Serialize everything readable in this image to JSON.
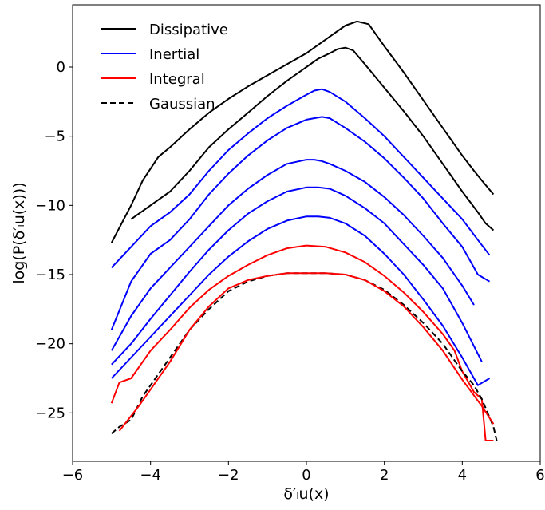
{
  "chart_data": {
    "type": "line",
    "xlabel": "δ′ₗu(x)",
    "ylabel": "log(P(δ′ₗu(x)))",
    "xlim": [
      -6,
      6
    ],
    "ylim": [
      -28.5,
      4.5
    ],
    "xticks": [
      -6,
      -4,
      -2,
      0,
      2,
      4,
      6
    ],
    "xtick_labels": [
      "−6",
      "−4",
      "−2",
      "0",
      "2",
      "4",
      "6"
    ],
    "yticks": [
      0,
      -5,
      -10,
      -15,
      -20,
      -25
    ],
    "ytick_labels": [
      "0",
      "−5",
      "−10",
      "−15",
      "−20",
      "−25"
    ],
    "grid": false,
    "legend_position": "top-left",
    "legend": [
      {
        "label": "Dissipative",
        "color": "#000000",
        "dash": "solid"
      },
      {
        "label": "Inertial",
        "color": "#0000ff",
        "dash": "solid"
      },
      {
        "label": "Integral",
        "color": "#ff0000",
        "dash": "solid"
      },
      {
        "label": "Gaussian",
        "color": "#000000",
        "dash": "dashed"
      }
    ],
    "series": [
      {
        "group": "Dissipative",
        "color": "#000000",
        "dash": "solid",
        "x": [
          -5.0,
          -4.5,
          -4.2,
          -3.8,
          -3.5,
          -3.0,
          -2.5,
          -2.0,
          -1.5,
          -1.0,
          -0.5,
          0.0,
          0.5,
          1.0,
          1.3,
          1.6,
          2.0,
          2.5,
          3.0,
          3.5,
          4.0,
          4.3,
          4.5,
          4.8
        ],
        "y": [
          -12.7,
          -10.0,
          -8.2,
          -6.5,
          -5.8,
          -4.5,
          -3.3,
          -2.3,
          -1.4,
          -0.6,
          0.2,
          1.0,
          2.0,
          3.0,
          3.3,
          3.1,
          1.5,
          -0.4,
          -2.4,
          -4.4,
          -6.4,
          -7.5,
          -8.2,
          -9.2
        ]
      },
      {
        "group": "Dissipative",
        "color": "#000000",
        "dash": "solid",
        "x": [
          -4.5,
          -4.0,
          -3.5,
          -3.0,
          -2.5,
          -2.0,
          -1.5,
          -1.0,
          -0.5,
          0.0,
          0.3,
          0.6,
          0.8,
          1.0,
          1.2,
          1.5,
          2.0,
          2.5,
          3.0,
          3.5,
          4.0,
          4.4,
          4.6,
          4.8
        ],
        "y": [
          -11.0,
          -10.0,
          -9.0,
          -7.5,
          -5.8,
          -4.5,
          -3.3,
          -2.1,
          -1.0,
          0.0,
          0.6,
          1.0,
          1.3,
          1.4,
          1.2,
          0.2,
          -1.5,
          -3.2,
          -5.0,
          -7.0,
          -9.0,
          -10.5,
          -11.3,
          -11.8
        ]
      },
      {
        "group": "Inertial",
        "color": "#0000ff",
        "dash": "solid",
        "x": [
          -5.0,
          -4.5,
          -4.0,
          -3.5,
          -3.0,
          -2.5,
          -2.0,
          -1.5,
          -1.0,
          -0.5,
          0.0,
          0.2,
          0.4,
          0.6,
          1.0,
          1.5,
          2.0,
          2.5,
          3.0,
          3.5,
          4.0,
          4.4,
          4.7
        ],
        "y": [
          -14.5,
          -13.0,
          -11.5,
          -10.5,
          -9.2,
          -7.5,
          -6.0,
          -4.8,
          -3.7,
          -2.8,
          -2.0,
          -1.7,
          -1.6,
          -1.8,
          -2.5,
          -3.7,
          -5.0,
          -6.5,
          -8.0,
          -9.5,
          -11.0,
          -12.5,
          -13.6
        ]
      },
      {
        "group": "Inertial",
        "color": "#0000ff",
        "dash": "solid",
        "x": [
          -5.0,
          -4.5,
          -4.0,
          -3.5,
          -3.0,
          -2.5,
          -2.0,
          -1.5,
          -1.0,
          -0.5,
          0.0,
          0.2,
          0.4,
          0.6,
          1.0,
          1.5,
          2.0,
          2.5,
          3.0,
          3.5,
          4.0,
          4.4,
          4.7
        ],
        "y": [
          -19.0,
          -15.5,
          -13.5,
          -12.5,
          -11.0,
          -9.2,
          -7.7,
          -6.4,
          -5.3,
          -4.4,
          -3.8,
          -3.7,
          -3.6,
          -3.7,
          -4.4,
          -5.4,
          -6.6,
          -8.0,
          -9.5,
          -11.3,
          -13.0,
          -15.0,
          -15.5
        ]
      },
      {
        "group": "Inertial",
        "color": "#0000ff",
        "dash": "solid",
        "x": [
          -5.0,
          -4.5,
          -4.0,
          -3.5,
          -3.0,
          -2.5,
          -2.0,
          -1.5,
          -1.0,
          -0.5,
          0.0,
          0.2,
          0.4,
          0.6,
          1.0,
          1.5,
          2.0,
          2.5,
          3.0,
          3.5,
          4.0,
          4.3
        ],
        "y": [
          -20.5,
          -18.0,
          -16.0,
          -14.5,
          -13.0,
          -11.5,
          -10.0,
          -8.8,
          -7.8,
          -7.0,
          -6.7,
          -6.7,
          -6.8,
          -7.0,
          -7.5,
          -8.3,
          -9.4,
          -10.7,
          -12.2,
          -13.8,
          -15.8,
          -17.2
        ]
      },
      {
        "group": "Inertial",
        "color": "#0000ff",
        "dash": "solid",
        "x": [
          -5.0,
          -4.5,
          -4.0,
          -3.5,
          -3.0,
          -2.5,
          -2.0,
          -1.5,
          -1.0,
          -0.5,
          0.0,
          0.3,
          0.6,
          1.0,
          1.5,
          2.0,
          2.5,
          3.0,
          3.5,
          4.0,
          4.5
        ],
        "y": [
          -21.5,
          -20.0,
          -18.2,
          -16.5,
          -14.8,
          -13.2,
          -11.8,
          -10.6,
          -9.7,
          -9.0,
          -8.7,
          -8.7,
          -8.8,
          -9.3,
          -10.2,
          -11.3,
          -12.8,
          -14.3,
          -16.0,
          -18.5,
          -21.3
        ]
      },
      {
        "group": "Inertial",
        "color": "#0000ff",
        "dash": "solid",
        "x": [
          -5.0,
          -4.5,
          -4.0,
          -3.5,
          -3.0,
          -2.5,
          -2.0,
          -1.5,
          -1.0,
          -0.5,
          0.0,
          0.3,
          0.6,
          1.0,
          1.5,
          2.0,
          2.5,
          3.0,
          3.5,
          4.0,
          4.4,
          4.7
        ],
        "y": [
          -22.5,
          -21.0,
          -19.5,
          -18.0,
          -16.5,
          -15.0,
          -13.7,
          -12.6,
          -11.7,
          -11.1,
          -10.8,
          -10.8,
          -10.9,
          -11.3,
          -12.2,
          -13.5,
          -15.0,
          -16.8,
          -18.7,
          -21.0,
          -23.0,
          -22.5
        ]
      },
      {
        "group": "Integral",
        "color": "#ff0000",
        "dash": "solid",
        "x": [
          -5.0,
          -4.8,
          -4.5,
          -4.0,
          -3.5,
          -3.0,
          -2.5,
          -2.0,
          -1.5,
          -1.0,
          -0.5,
          0.0,
          0.5,
          1.0,
          1.5,
          2.0,
          2.5,
          3.0,
          3.5,
          3.8,
          4.0,
          4.3,
          4.5,
          4.6,
          4.8
        ],
        "y": [
          -24.3,
          -22.8,
          -22.5,
          -20.5,
          -19.0,
          -17.4,
          -16.1,
          -15.1,
          -14.3,
          -13.6,
          -13.1,
          -12.9,
          -13.0,
          -13.4,
          -14.1,
          -15.1,
          -16.3,
          -17.7,
          -19.3,
          -20.5,
          -22.0,
          -23.5,
          -24.0,
          -27.0,
          -27.0
        ]
      },
      {
        "group": "Gaussian",
        "color": "#000000",
        "dash": "dashed",
        "x": [
          -5.0,
          -4.8,
          -4.5,
          -4.2,
          -4.0,
          -3.5,
          -3.0,
          -2.5,
          -2.0,
          -1.5,
          -1.0,
          -0.5,
          0.0,
          0.5,
          1.0,
          1.5,
          2.0,
          2.5,
          3.0,
          3.5,
          4.0,
          4.3,
          4.5,
          4.8,
          4.9
        ],
        "y": [
          -26.5,
          -26.0,
          -25.5,
          -23.8,
          -23.0,
          -21.0,
          -19.0,
          -17.5,
          -16.2,
          -15.5,
          -15.1,
          -14.9,
          -14.9,
          -14.9,
          -15.0,
          -15.4,
          -16.1,
          -17.2,
          -18.5,
          -20.0,
          -22.0,
          -23.0,
          -24.0,
          -26.0,
          -27.2
        ]
      },
      {
        "group": "Integral",
        "color": "#ff0000",
        "dash": "solid",
        "x": [
          -4.8,
          -4.3,
          -4.0,
          -3.5,
          -3.0,
          -2.5,
          -2.0,
          -1.5,
          -1.0,
          -0.5,
          0.0,
          0.5,
          1.0,
          1.5,
          2.0,
          2.5,
          3.0,
          3.5,
          4.0,
          4.5,
          4.8
        ],
        "y": [
          -26.3,
          -24.5,
          -23.3,
          -21.3,
          -19.0,
          -17.3,
          -16.0,
          -15.4,
          -15.1,
          -14.9,
          -14.9,
          -14.9,
          -15.0,
          -15.4,
          -16.2,
          -17.3,
          -18.8,
          -20.5,
          -22.6,
          -24.5,
          -25.8
        ]
      }
    ]
  }
}
